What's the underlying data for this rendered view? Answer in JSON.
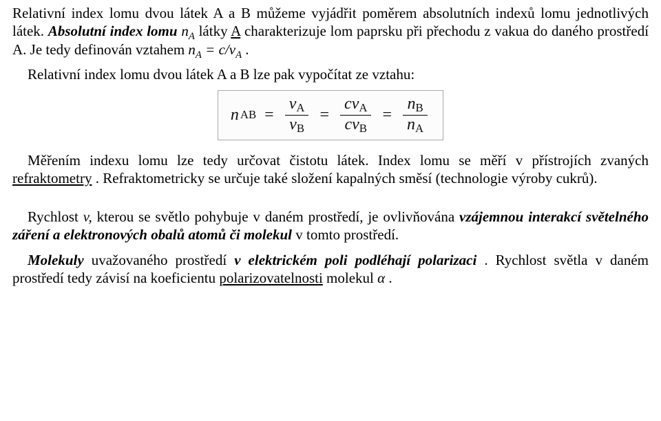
{
  "p1": {
    "t1": "Relativní index lomu dvou látek A a B můžeme vyjádřit poměrem absolutních indexů lomu jednotlivých látek. ",
    "abs1": "Absolutní index lomu ",
    "nA_var": "n",
    "nA_sub": "A",
    "t2": " látky ",
    "A": "A",
    "t3": " charakterizuje lom paprsku při přechodu z vakua do daného prostředí A. Je tedy definován vztahem ",
    "nA2_var": "n",
    "nA2_sub": "A",
    "eq": " = ",
    "cv": "c/v",
    "cv_sub": "A",
    "end": "."
  },
  "p2": {
    "t": "Relativní index lomu dvou látek A a B lze pak vypočítat ze vztahu:"
  },
  "formula": {
    "lhs_n": "n",
    "lhs_sub": "AB",
    "eq": "=",
    "f1_num_v": "v",
    "f1_num_sub": "A",
    "f1_den_v": "v",
    "f1_den_sub": "B",
    "f2_num_c": "c",
    "f2_num_v": "v",
    "f2_num_sub": "A",
    "f2_den_c": "c",
    "f2_den_v": "v",
    "f2_den_sub": "B",
    "f3_num_n": "n",
    "f3_num_sub": "B",
    "f3_den_n": "n",
    "f3_den_sub": "A"
  },
  "p3": {
    "t1": "Měřením indexu lomu lze tedy určovat čistotu látek. Index lomu se měří v přístrojích zvaných ",
    "link": "refraktometry",
    "t2": ". Refraktometricky se určuje také složení kapalných směsí (technologie výroby cukrů)."
  },
  "p4": {
    "t1": "Rychlost ",
    "v": "v,",
    "t2": " kterou se světlo pohybuje v daném prostředí, je ovlivňována ",
    "b1": "vzájemnou interakcí světelného záření a elektronových obalů atomů či molekul",
    "t3": " v tomto prostředí."
  },
  "p5": {
    "t1": "Molekuly",
    "t2": " uvažovaného prostředí ",
    "b1": "v elektrickém poli podléhají polarizaci",
    "t3": ". Rychlost světla v daném prostředí tedy závisí na koeficientu ",
    "link": "polarizovatelnosti",
    "t4": " molekul ",
    "alpha": "α",
    "end": "."
  }
}
